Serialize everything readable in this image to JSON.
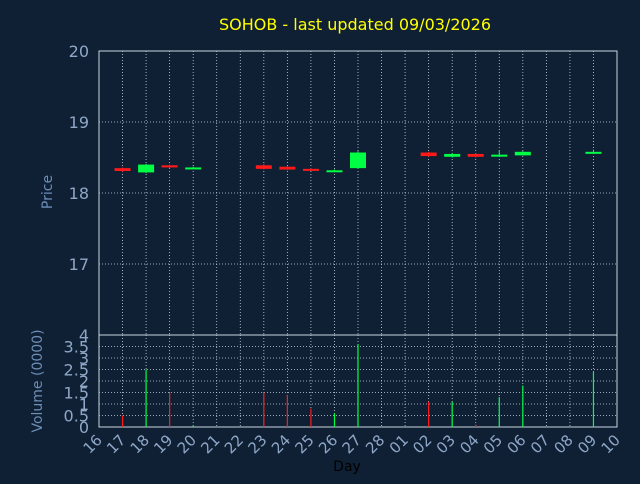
{
  "title": "SOHOB - last updated 09/03/2026",
  "colors": {
    "background": "#0f2034",
    "title": "#ffff00",
    "axis_text": "#8fa7c7",
    "axis_title": "#6d8db5",
    "grid": "#c9d3df",
    "up": "#00ff44",
    "down": "#ff1a1a"
  },
  "chart_data": [
    {
      "type": "candlestick",
      "ylabel": "Price",
      "ylim": [
        16,
        20
      ],
      "yticks": [
        "17",
        "18",
        "19",
        "20"
      ],
      "grid": true,
      "x_days": [
        "16",
        "17",
        "18",
        "19",
        "20",
        "21",
        "22",
        "23",
        "24",
        "25",
        "26",
        "27",
        "28",
        "01",
        "02",
        "03",
        "04",
        "05",
        "06",
        "07",
        "08",
        "09",
        "10"
      ],
      "candles": [
        {
          "day": "17",
          "open": 18.35,
          "close": 18.31,
          "high": 18.36,
          "low": 18.3,
          "dir": "down"
        },
        {
          "day": "18",
          "open": 18.29,
          "close": 18.4,
          "high": 18.41,
          "low": 18.28,
          "dir": "up"
        },
        {
          "day": "19",
          "open": 18.39,
          "close": 18.36,
          "high": 18.4,
          "low": 18.35,
          "dir": "down"
        },
        {
          "day": "20",
          "open": 18.34,
          "close": 18.36,
          "high": 18.37,
          "low": 18.34,
          "dir": "up"
        },
        {
          "day": "23",
          "open": 18.39,
          "close": 18.34,
          "high": 18.41,
          "low": 18.33,
          "dir": "down"
        },
        {
          "day": "24",
          "open": 18.37,
          "close": 18.33,
          "high": 18.38,
          "low": 18.32,
          "dir": "down"
        },
        {
          "day": "25",
          "open": 18.34,
          "close": 18.32,
          "high": 18.35,
          "low": 18.32,
          "dir": "down"
        },
        {
          "day": "26",
          "open": 18.3,
          "close": 18.32,
          "high": 18.33,
          "low": 18.3,
          "dir": "up"
        },
        {
          "day": "27",
          "open": 18.35,
          "close": 18.57,
          "high": 18.59,
          "low": 18.34,
          "dir": "up"
        },
        {
          "day": "02",
          "open": 18.57,
          "close": 18.52,
          "high": 18.58,
          "low": 18.51,
          "dir": "down"
        },
        {
          "day": "03",
          "open": 18.51,
          "close": 18.55,
          "high": 18.56,
          "low": 18.5,
          "dir": "up"
        },
        {
          "day": "04",
          "open": 18.55,
          "close": 18.51,
          "high": 18.56,
          "low": 18.5,
          "dir": "down"
        },
        {
          "day": "05",
          "open": 18.52,
          "close": 18.54,
          "high": 18.6,
          "low": 18.51,
          "dir": "up"
        },
        {
          "day": "06",
          "open": 18.53,
          "close": 18.58,
          "high": 18.59,
          "low": 18.53,
          "dir": "up"
        },
        {
          "day": "09",
          "open": 18.57,
          "close": 18.58,
          "high": 18.61,
          "low": 18.57,
          "dir": "up"
        }
      ]
    },
    {
      "type": "bar",
      "ylabel": "Volume (0000)",
      "xlabel": "Day",
      "ylim": [
        0,
        4
      ],
      "yticks": [
        "0",
        "0.5",
        "1",
        "1.5",
        "2",
        "2.5",
        "3",
        "3.5",
        "4"
      ],
      "grid": true,
      "x_days": [
        "16",
        "17",
        "18",
        "19",
        "20",
        "21",
        "22",
        "23",
        "24",
        "25",
        "26",
        "27",
        "28",
        "01",
        "02",
        "03",
        "04",
        "05",
        "06",
        "07",
        "08",
        "09",
        "10"
      ],
      "bars": [
        {
          "day": "17",
          "value": 0.5,
          "dir": "down"
        },
        {
          "day": "18",
          "value": 2.5,
          "dir": "up"
        },
        {
          "day": "19",
          "value": 1.5,
          "dir": "down"
        },
        {
          "day": "20",
          "value": 0.05,
          "dir": "up"
        },
        {
          "day": "23",
          "value": 1.5,
          "dir": "down"
        },
        {
          "day": "24",
          "value": 1.4,
          "dir": "down"
        },
        {
          "day": "25",
          "value": 0.8,
          "dir": "down"
        },
        {
          "day": "26",
          "value": 0.6,
          "dir": "up"
        },
        {
          "day": "27",
          "value": 3.6,
          "dir": "up"
        },
        {
          "day": "02",
          "value": 1.1,
          "dir": "down"
        },
        {
          "day": "03",
          "value": 1.1,
          "dir": "up"
        },
        {
          "day": "04",
          "value": 0.1,
          "dir": "down"
        },
        {
          "day": "05",
          "value": 1.3,
          "dir": "up"
        },
        {
          "day": "06",
          "value": 1.8,
          "dir": "up"
        },
        {
          "day": "09",
          "value": 2.4,
          "dir": "up"
        }
      ]
    }
  ]
}
